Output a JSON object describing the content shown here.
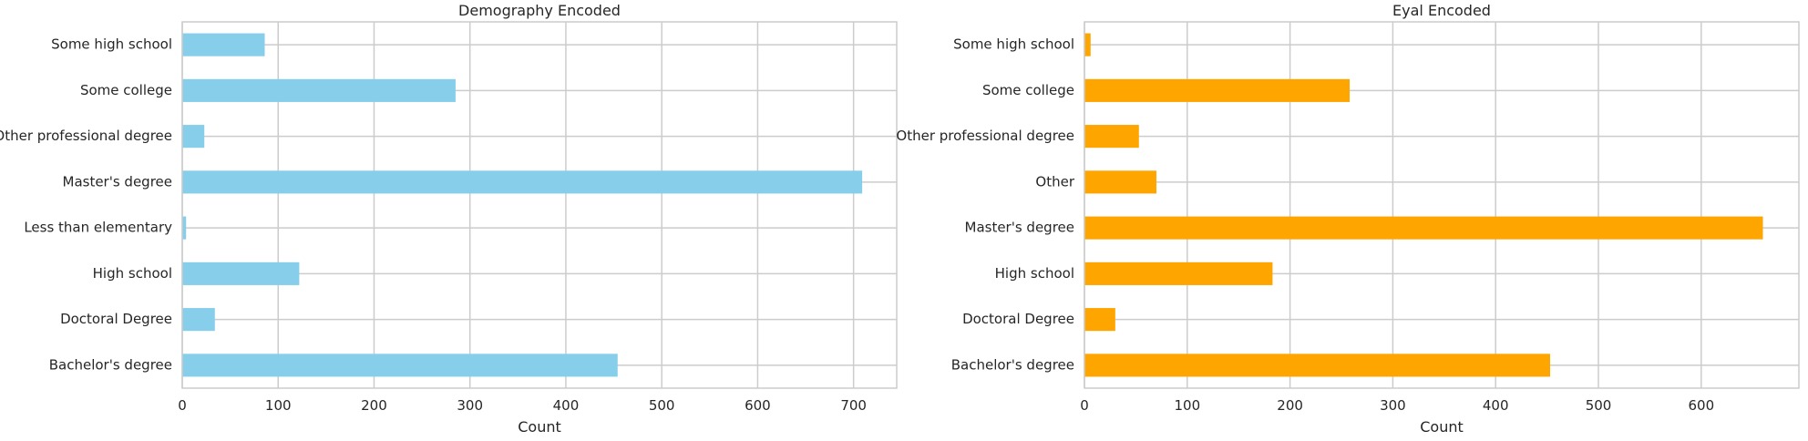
{
  "chart_data": [
    {
      "type": "bar",
      "orientation": "horizontal",
      "title": "Demography Encoded",
      "xlabel": "Count",
      "ylabel": "",
      "xlim": [
        0,
        745
      ],
      "xticks": [
        0,
        100,
        200,
        300,
        400,
        500,
        600,
        700
      ],
      "grid": true,
      "color": "#87CEEB",
      "categories": [
        "Bachelor's degree",
        "Doctoral Degree",
        "High school",
        "Less than elementary",
        "Master's degree",
        "Other professional degree",
        "Some college",
        "Some high school"
      ],
      "values": [
        454,
        34,
        122,
        4,
        709,
        23,
        285,
        86
      ]
    },
    {
      "type": "bar",
      "orientation": "horizontal",
      "title": "Eyal Encoded",
      "xlabel": "Count",
      "ylabel": "",
      "xlim": [
        0,
        695
      ],
      "xticks": [
        0,
        100,
        200,
        300,
        400,
        500,
        600
      ],
      "grid": true,
      "color": "#FFA500",
      "categories": [
        "Bachelor's degree",
        "Doctoral Degree",
        "High school",
        "Master's degree",
        "Other",
        "Other professional degree",
        "Some college",
        "Some high school"
      ],
      "values": [
        453,
        30,
        183,
        660,
        70,
        53,
        258,
        6
      ]
    }
  ]
}
